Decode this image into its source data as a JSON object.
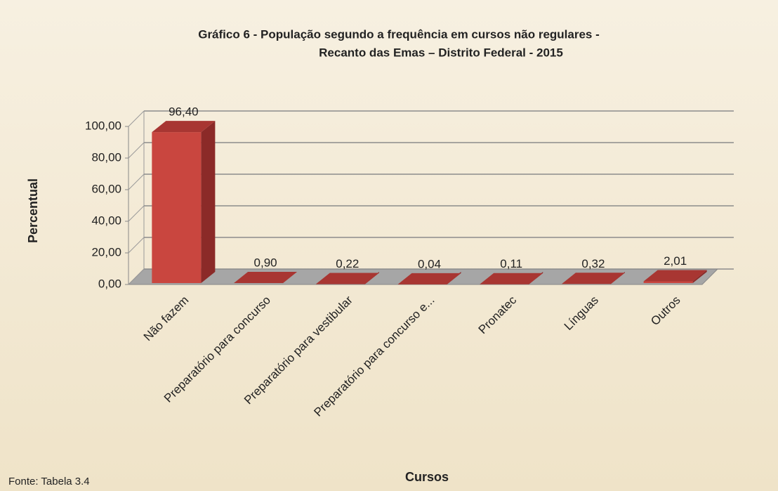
{
  "chart_data": {
    "type": "bar3d",
    "title": [
      "Gráfico 6 - População segundo a frequência em cursos não regulares -",
      "Recanto das Emas – Distrito Federal - 2015"
    ],
    "x_label": "Cursos",
    "y_label": "Percentual",
    "source": "Fonte: Tabela 3.4",
    "categories": [
      "Não fazem",
      "Preparatório para concurso",
      "Preparatório para vestibular",
      "Preparatório para concurso e...",
      "Pronatec",
      "Línguas",
      "Outros"
    ],
    "values": [
      96.4,
      0.9,
      0.22,
      0.04,
      0.11,
      0.32,
      2.01
    ],
    "value_labels": [
      "96,40",
      "0,90",
      "0,22",
      "0,04",
      "0,11",
      "0,32",
      "2,01"
    ],
    "color": "#c9463f",
    "ylim": [
      0,
      100
    ],
    "yticks": [
      {
        "value": 0,
        "label": "0,00"
      },
      {
        "value": 20,
        "label": "20,00"
      },
      {
        "value": 40,
        "label": "40,00"
      },
      {
        "value": 60,
        "label": "60,00"
      },
      {
        "value": 80,
        "label": "80,00"
      },
      {
        "value": 100,
        "label": "100,00"
      }
    ],
    "grid": true
  }
}
